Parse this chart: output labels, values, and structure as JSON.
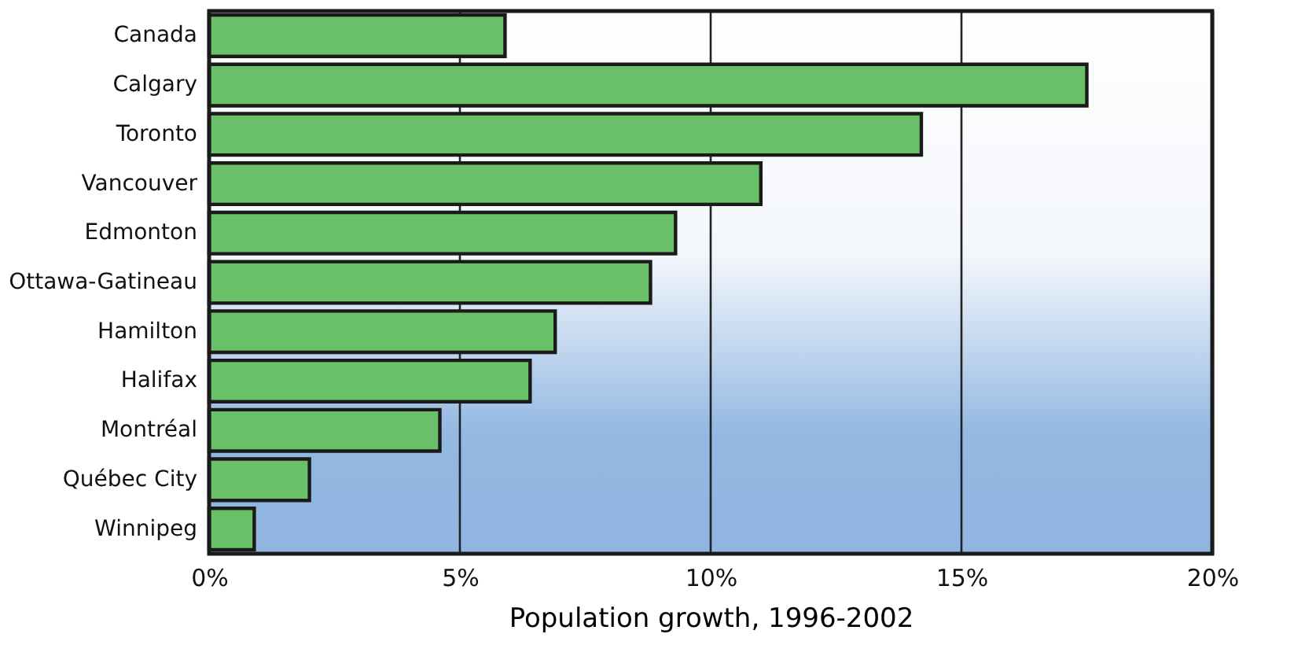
{
  "chart_data": {
    "type": "bar",
    "orientation": "horizontal",
    "xlabel": "Population growth, 1996-2002",
    "categories": [
      "Canada",
      "Calgary",
      "Toronto",
      "Vancouver",
      "Edmonton",
      "Ottawa-Gatineau",
      "Hamilton",
      "Halifax",
      "Montréal",
      "Québec City",
      "Winnipeg"
    ],
    "values": [
      5.9,
      17.5,
      14.2,
      11.0,
      9.3,
      8.8,
      6.9,
      6.4,
      4.6,
      2.0,
      0.9
    ],
    "color": "#6abf69",
    "xlim": [
      0,
      20
    ],
    "xticks": [
      {
        "value": 0,
        "label": "0%"
      },
      {
        "value": 5,
        "label": "5%"
      },
      {
        "value": 10,
        "label": "10%"
      },
      {
        "value": 15,
        "label": "15%"
      },
      {
        "value": 20,
        "label": "20%"
      }
    ],
    "grid": "x"
  }
}
